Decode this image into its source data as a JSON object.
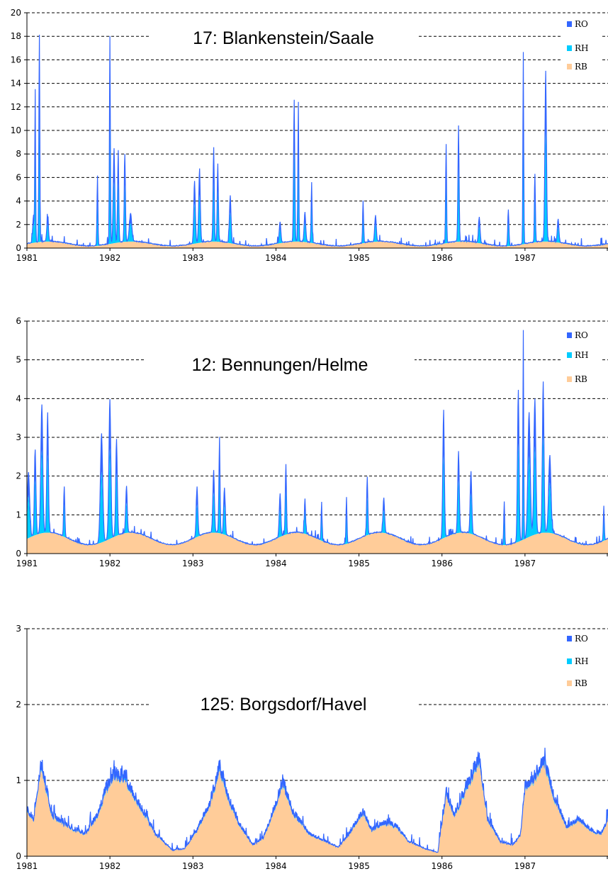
{
  "chart_data": [
    {
      "type": "area",
      "title": "17: Blankenstein/Saale",
      "ylim": [
        0,
        20
      ],
      "yticks": [
        "0",
        "2",
        "4",
        "6",
        "8",
        "10",
        "12",
        "14",
        "16",
        "18",
        "20"
      ],
      "x_range": [
        1981,
        1988
      ],
      "xticks": [
        "1981",
        "1982",
        "1983",
        "1984",
        "1985",
        "1986",
        "1987"
      ],
      "grid": true,
      "legend": "top-right",
      "series": [
        {
          "name": "RO",
          "color": "#3366ff",
          "role": "total",
          "baseline": {
            "amp": 0.4,
            "base": 0.15,
            "peakMonth": 3
          },
          "events": [
            [
              1981.15,
              17.6,
              0.012
            ],
            [
              1981.1,
              12.8,
              0.01
            ],
            [
              1981.08,
              2.3,
              0.02
            ],
            [
              1981.25,
              2.0,
              0.02
            ],
            [
              1981.85,
              5.9,
              0.012
            ],
            [
              1982.0,
              17.6,
              0.012
            ],
            [
              1982.05,
              8.0,
              0.02
            ],
            [
              1982.1,
              7.8,
              0.015
            ],
            [
              1982.18,
              7.4,
              0.015
            ],
            [
              1982.25,
              2.4,
              0.03
            ],
            [
              1983.02,
              5.3,
              0.02
            ],
            [
              1983.08,
              6.3,
              0.02
            ],
            [
              1983.25,
              8.0,
              0.015
            ],
            [
              1983.3,
              6.6,
              0.015
            ],
            [
              1983.45,
              4.0,
              0.02
            ],
            [
              1984.22,
              12.0,
              0.015
            ],
            [
              1984.27,
              11.8,
              0.012
            ],
            [
              1984.35,
              2.5,
              0.02
            ],
            [
              1984.43,
              5.1,
              0.012
            ],
            [
              1984.05,
              1.8,
              0.02
            ],
            [
              1985.05,
              3.6,
              0.012
            ],
            [
              1985.2,
              2.2,
              0.02
            ],
            [
              1986.05,
              8.4,
              0.012
            ],
            [
              1986.2,
              9.8,
              0.015
            ],
            [
              1986.45,
              2.2,
              0.02
            ],
            [
              1986.8,
              3.1,
              0.015
            ],
            [
              1986.98,
              16.3,
              0.01
            ],
            [
              1987.12,
              5.8,
              0.012
            ],
            [
              1987.25,
              14.5,
              0.02
            ],
            [
              1987.4,
              2.0,
              0.02
            ]
          ]
        },
        {
          "name": "RH",
          "color": "#00ccff",
          "role": "interflow"
        },
        {
          "name": "RB",
          "color": "#ffcc99",
          "role": "baseflow"
        }
      ]
    },
    {
      "type": "area",
      "title": "12: Bennungen/Helme",
      "ylim": [
        0,
        6
      ],
      "yticks": [
        "0",
        "1",
        "2",
        "3",
        "4",
        "5",
        "6"
      ],
      "x_range": [
        1981,
        1988
      ],
      "xticks": [
        "1981",
        "1982",
        "1983",
        "1984",
        "1985",
        "1986",
        "1987"
      ],
      "grid": true,
      "legend": "top-right",
      "series": [
        {
          "name": "RO",
          "color": "#3366ff",
          "role": "total",
          "baseline": {
            "amp": 0.32,
            "base": 0.22,
            "peakMonth": 3
          },
          "events": [
            [
              1981.02,
              1.7,
              0.03
            ],
            [
              1981.1,
              2.2,
              0.02
            ],
            [
              1981.18,
              3.3,
              0.025
            ],
            [
              1981.25,
              3.1,
              0.02
            ],
            [
              1981.45,
              1.3,
              0.015
            ],
            [
              1981.9,
              2.8,
              0.03
            ],
            [
              1982.0,
              3.6,
              0.025
            ],
            [
              1982.08,
              2.5,
              0.02
            ],
            [
              1982.2,
              1.2,
              0.02
            ],
            [
              1983.05,
              1.3,
              0.02
            ],
            [
              1983.25,
              1.6,
              0.02
            ],
            [
              1983.32,
              2.3,
              0.015
            ],
            [
              1983.38,
              1.2,
              0.02
            ],
            [
              1984.12,
              1.8,
              0.015
            ],
            [
              1984.05,
              1.1,
              0.02
            ],
            [
              1984.35,
              0.9,
              0.015
            ],
            [
              1984.55,
              1.0,
              0.012
            ],
            [
              1984.85,
              1.2,
              0.012
            ],
            [
              1985.1,
              1.5,
              0.015
            ],
            [
              1985.3,
              0.9,
              0.02
            ],
            [
              1986.02,
              3.3,
              0.02
            ],
            [
              1986.2,
              2.1,
              0.02
            ],
            [
              1986.35,
              1.6,
              0.02
            ],
            [
              1986.75,
              1.1,
              0.012
            ],
            [
              1986.92,
              3.9,
              0.02
            ],
            [
              1986.98,
              5.4,
              0.01
            ],
            [
              1987.05,
              3.2,
              0.03
            ],
            [
              1987.12,
              3.5,
              0.025
            ],
            [
              1987.22,
              3.9,
              0.02
            ],
            [
              1987.3,
              2.0,
              0.03
            ],
            [
              1987.95,
              0.9,
              0.012
            ]
          ]
        },
        {
          "name": "RH",
          "color": "#00ccff",
          "role": "interflow"
        },
        {
          "name": "RB",
          "color": "#ffcc99",
          "role": "baseflow"
        }
      ]
    },
    {
      "type": "area",
      "title": "125: Borgsdorf/Havel",
      "ylim": [
        0,
        3
      ],
      "yticks": [
        "0",
        "1",
        "2",
        "3"
      ],
      "x_range": [
        1981,
        1988
      ],
      "xticks": [
        "1981",
        "1982",
        "1983",
        "1984",
        "1985",
        "1986",
        "1987"
      ],
      "grid": true,
      "legend": "top-right",
      "series": [
        {
          "name": "RO",
          "color": "#3366ff",
          "role": "total",
          "baseline": {
            "amp": 0.0,
            "base": 0.0,
            "peakMonth": 3
          },
          "envelope": [
            [
              1981.0,
              0.62
            ],
            [
              1981.08,
              0.5
            ],
            [
              1981.17,
              1.25
            ],
            [
              1981.3,
              0.55
            ],
            [
              1981.5,
              0.4
            ],
            [
              1981.7,
              0.3
            ],
            [
              1981.85,
              0.55
            ],
            [
              1981.95,
              0.9
            ],
            [
              1982.05,
              1.1
            ],
            [
              1982.18,
              1.05
            ],
            [
              1982.35,
              0.7
            ],
            [
              1982.55,
              0.3
            ],
            [
              1982.75,
              0.08
            ],
            [
              1982.9,
              0.1
            ],
            [
              1983.05,
              0.35
            ],
            [
              1983.2,
              0.7
            ],
            [
              1983.32,
              1.2
            ],
            [
              1983.42,
              0.8
            ],
            [
              1983.55,
              0.45
            ],
            [
              1983.72,
              0.15
            ],
            [
              1983.85,
              0.25
            ],
            [
              1984.0,
              0.7
            ],
            [
              1984.08,
              1.0
            ],
            [
              1984.2,
              0.6
            ],
            [
              1984.4,
              0.3
            ],
            [
              1984.6,
              0.2
            ],
            [
              1984.75,
              0.12
            ],
            [
              1984.88,
              0.3
            ],
            [
              1985.05,
              0.6
            ],
            [
              1985.15,
              0.35
            ],
            [
              1985.3,
              0.45
            ],
            [
              1985.45,
              0.4
            ],
            [
              1985.6,
              0.2
            ],
            [
              1985.8,
              0.1
            ],
            [
              1985.95,
              0.05
            ],
            [
              1986.05,
              0.85
            ],
            [
              1986.15,
              0.55
            ],
            [
              1986.28,
              0.9
            ],
            [
              1986.45,
              1.3
            ],
            [
              1986.55,
              0.5
            ],
            [
              1986.7,
              0.2
            ],
            [
              1986.85,
              0.15
            ],
            [
              1986.95,
              0.3
            ],
            [
              1987.0,
              0.95
            ],
            [
              1987.1,
              1.05
            ],
            [
              1987.22,
              1.3
            ],
            [
              1987.35,
              0.8
            ],
            [
              1987.5,
              0.4
            ],
            [
              1987.65,
              0.5
            ],
            [
              1987.8,
              0.35
            ],
            [
              1987.92,
              0.3
            ],
            [
              1988.0,
              0.5
            ]
          ]
        },
        {
          "name": "RH",
          "color": "#00ccff",
          "role": "interflow"
        },
        {
          "name": "RB",
          "color": "#ffcc99",
          "role": "baseflow"
        }
      ]
    }
  ]
}
